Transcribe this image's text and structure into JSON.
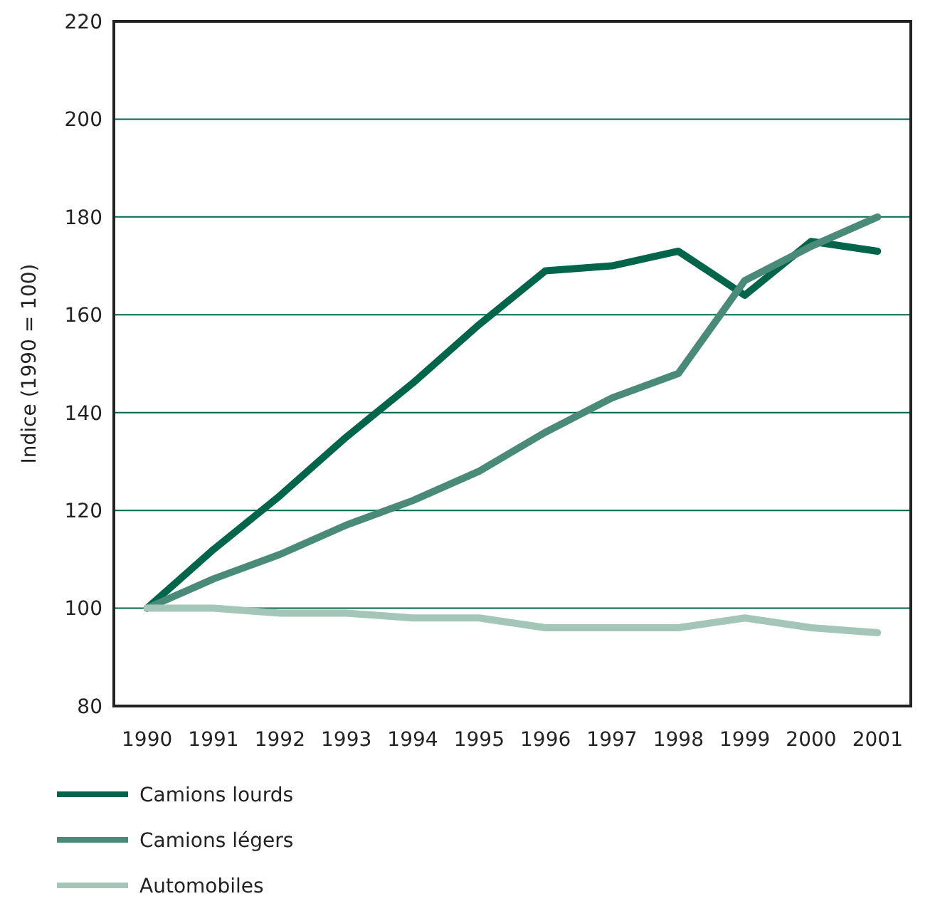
{
  "chart_data": {
    "type": "line",
    "ylabel": "Indice (1990 = 100)",
    "categories": [
      "1990",
      "1991",
      "1992",
      "1993",
      "1994",
      "1995",
      "1996",
      "1997",
      "1998",
      "1999",
      "2000",
      "2001"
    ],
    "series": [
      {
        "name": "Camions lourds",
        "color": "#00654a",
        "values": [
          100,
          112,
          123,
          135,
          146,
          158,
          169,
          170,
          173,
          164,
          175,
          173
        ]
      },
      {
        "name": "Camions légers",
        "color": "#4a8a78",
        "values": [
          100,
          106,
          111,
          117,
          122,
          128,
          136,
          143,
          148,
          167,
          174,
          180
        ]
      },
      {
        "name": "Automobiles",
        "color": "#a3c6b9",
        "values": [
          100,
          100,
          99,
          99,
          98,
          98,
          96,
          96,
          96,
          98,
          96,
          95
        ]
      }
    ],
    "ylim": [
      80,
      220
    ],
    "yticks": [
      80,
      100,
      120,
      140,
      160,
      180,
      200,
      220
    ],
    "grid": "y",
    "legend": "bottom",
    "marker": "none",
    "line_style": "solid"
  }
}
